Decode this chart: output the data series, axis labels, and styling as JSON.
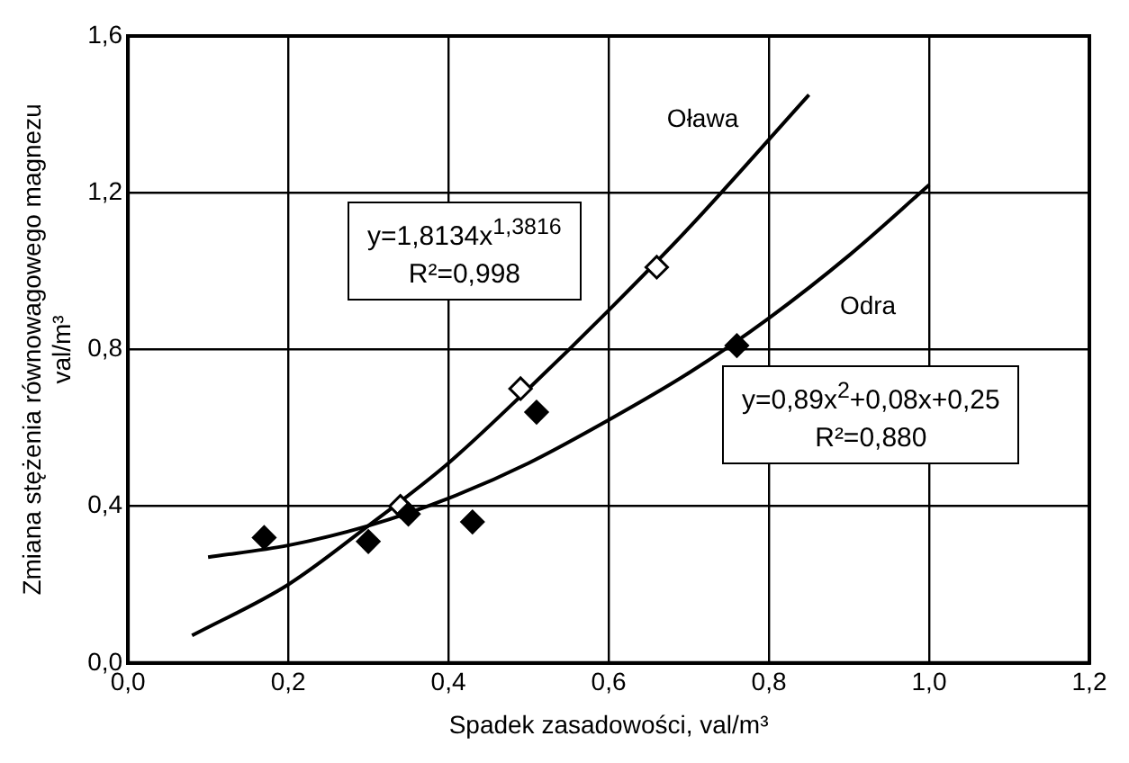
{
  "chart_data": {
    "type": "scatter",
    "xlabel": "Spadek zasadowości, val/m³",
    "ylabel": [
      "Zmiana stężenia równowagowego magnezu",
      "val/m³"
    ],
    "xlim": [
      0,
      1.2
    ],
    "xticks": [
      {
        "value": 0,
        "label": "0,0"
      },
      {
        "value": 0.2,
        "label": "0,2"
      },
      {
        "value": 0.4,
        "label": "0,4"
      },
      {
        "value": 0.6,
        "label": "0,6"
      },
      {
        "value": 0.8,
        "label": "0,8"
      },
      {
        "value": 1.0,
        "label": "1,0"
      },
      {
        "value": 1.2,
        "label": "1,2"
      }
    ],
    "ylim": [
      0,
      1.6
    ],
    "yticks": [
      {
        "value": 0,
        "label": "0,0"
      },
      {
        "value": 0.4,
        "label": "0,4"
      },
      {
        "value": 0.8,
        "label": "0,8"
      },
      {
        "value": 1.2,
        "label": "1,2"
      },
      {
        "value": 1.6,
        "label": "1,6"
      }
    ],
    "grid": true,
    "legend": false,
    "marker": "diamond",
    "series": [
      {
        "type": "line",
        "name": "Oława",
        "color": "#000000",
        "x": [
          0.08,
          0.2,
          0.3,
          0.4,
          0.5,
          0.6,
          0.7,
          0.85
        ],
        "values": [
          0.07,
          0.2,
          0.35,
          0.51,
          0.7,
          0.9,
          1.11,
          1.45
        ],
        "marker": "none"
      },
      {
        "type": "line",
        "name": "Odra",
        "color": "#000000",
        "x": [
          0.1,
          0.2,
          0.3,
          0.4,
          0.5,
          0.6,
          0.7,
          0.8,
          0.9,
          1.0
        ],
        "values": [
          0.27,
          0.3,
          0.35,
          0.42,
          0.51,
          0.62,
          0.74,
          0.88,
          1.04,
          1.22
        ],
        "marker": "none"
      },
      {
        "color": "#ffffff",
        "x": [
          0.34,
          0.49,
          0.66
        ],
        "values": [
          0.4,
          0.7,
          1.01
        ]
      },
      {
        "color": "#000000",
        "x": [
          0.17,
          0.3,
          0.35,
          0.43,
          0.51,
          0.76
        ],
        "values": [
          0.32,
          0.31,
          0.38,
          0.36,
          0.64,
          0.81
        ]
      }
    ],
    "annotations": [
      "y=1,8134x$^{1,3816}$\nR²=0,998",
      "y=0,89x$^{2}$+0,08x+0,25\nR²=0,880"
    ]
  }
}
